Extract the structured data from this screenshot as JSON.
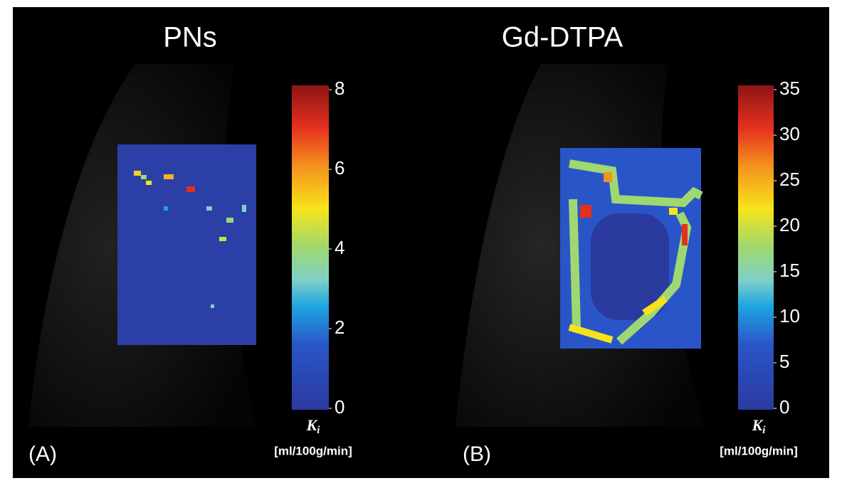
{
  "panels": [
    {
      "title": "PNs",
      "label": "(A)",
      "colorbar": {
        "lim": [
          0,
          8
        ],
        "ticks": [
          0,
          2,
          4,
          6,
          8
        ],
        "symbol": "K",
        "subscript": "i",
        "unit": "[ml/100g/min]"
      }
    },
    {
      "title": "Gd-DTPA",
      "label": "(B)",
      "colorbar": {
        "lim": [
          0,
          35
        ],
        "ticks": [
          0,
          5,
          10,
          15,
          20,
          25,
          30,
          35
        ],
        "symbol": "K",
        "subscript": "i",
        "unit": "[ml/100g/min]"
      }
    }
  ]
}
